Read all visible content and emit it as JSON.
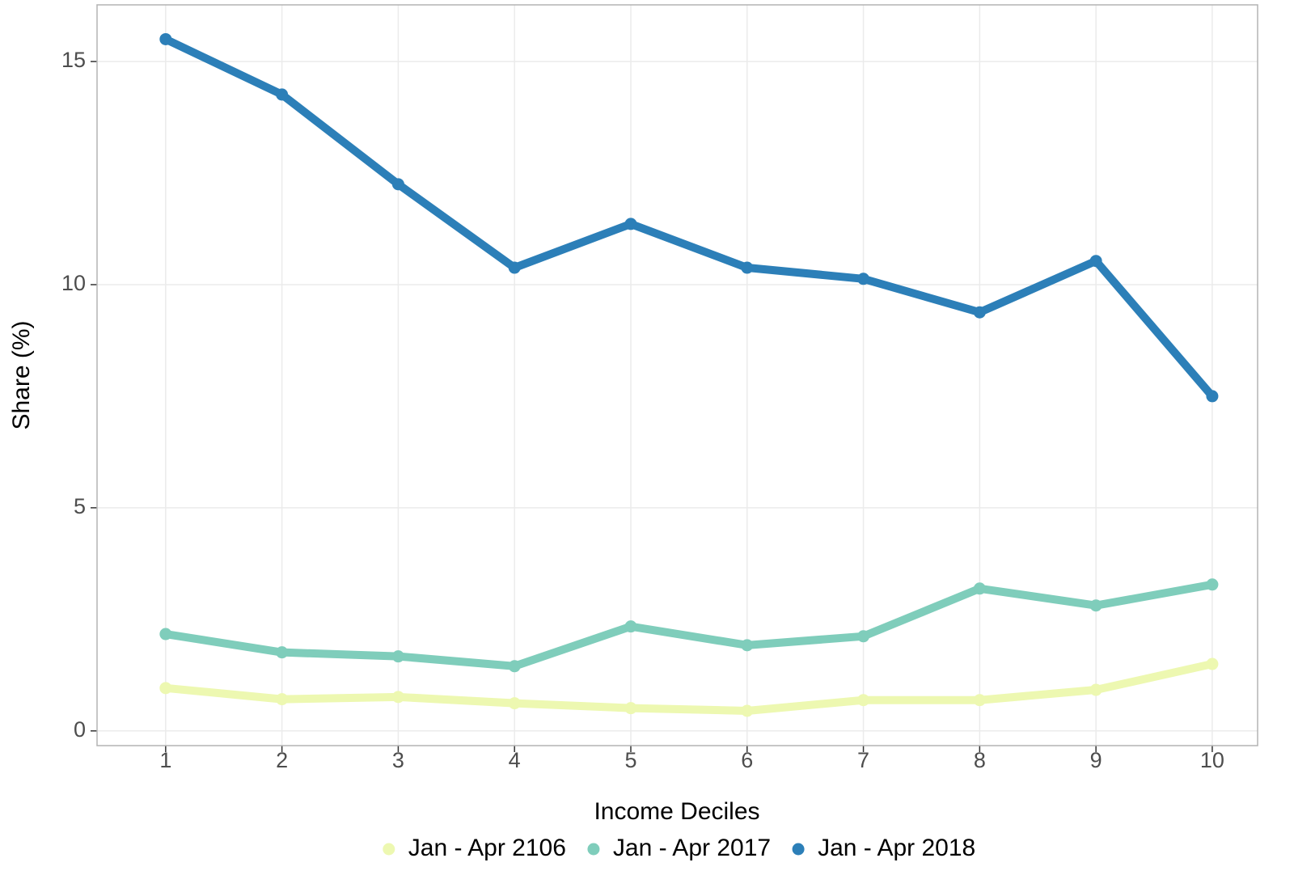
{
  "chart_data": {
    "type": "line",
    "x_label": "Income Deciles",
    "y_label": "Share (%)",
    "x": [
      1,
      2,
      3,
      4,
      5,
      6,
      7,
      8,
      9,
      10
    ],
    "series": [
      {
        "name": "Jan - Apr 2106",
        "color": "#edf8b1",
        "values": [
          0.96,
          0.71,
          0.76,
          0.62,
          0.51,
          0.45,
          0.69,
          0.69,
          0.92,
          1.5
        ]
      },
      {
        "name": "Jan - Apr 2017",
        "color": "#7fcdbb",
        "values": [
          2.17,
          1.76,
          1.67,
          1.45,
          2.34,
          1.92,
          2.12,
          3.19,
          2.81,
          3.28
        ]
      },
      {
        "name": "Jan - Apr 2018",
        "color": "#2c7fb8",
        "values": [
          15.5,
          14.26,
          12.25,
          10.38,
          11.36,
          10.38,
          10.13,
          9.38,
          10.53,
          7.5
        ]
      }
    ],
    "xlim": [
      0.41,
      10.39
    ],
    "xticks": [
      1,
      2,
      3,
      4,
      5,
      6,
      7,
      8,
      9,
      10
    ],
    "ylim": [
      -0.33,
      16.27
    ],
    "yticks": [
      0,
      5,
      10,
      15
    ],
    "grid": true,
    "legend": "bottom"
  }
}
